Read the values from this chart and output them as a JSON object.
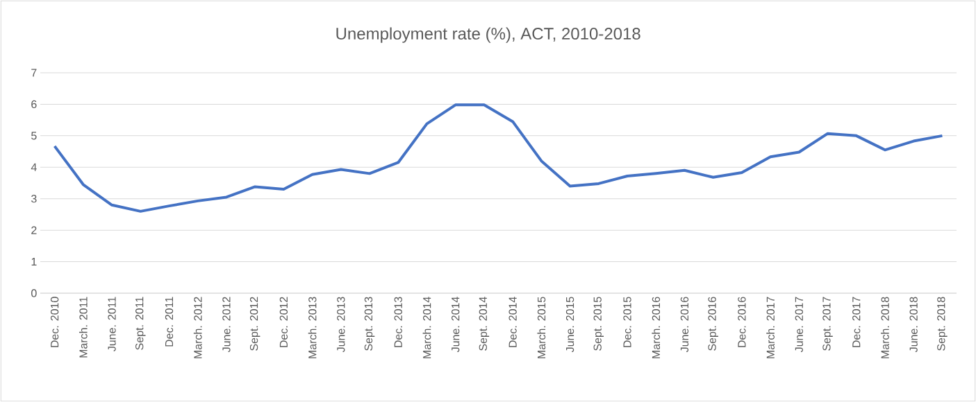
{
  "chart_data": {
    "type": "line",
    "title": "Unemployment rate (%), ACT, 2010-2018",
    "categories": [
      "Dec. 2010",
      "March. 2011",
      "June. 2011",
      "Sept. 2011",
      "Dec. 2011",
      "March. 2012",
      "June. 2012",
      "Sept. 2012",
      "Dec. 2012",
      "March. 2013",
      "June. 2013",
      "Sept. 2013",
      "Dec. 2013",
      "March. 2014",
      "June. 2014",
      "Sept. 2014",
      "Dec. 2014",
      "March. 2015",
      "June. 2015",
      "Sept. 2015",
      "Dec. 2015",
      "March. 2016",
      "June. 2016",
      "Sept. 2016",
      "Dec. 2016",
      "March. 2017",
      "June. 2017",
      "Sept. 2017",
      "Dec. 2017",
      "March. 2018",
      "June. 2018",
      "Sept. 2018"
    ],
    "series": [
      {
        "color": "#4472c4",
        "values": [
          4.67,
          3.45,
          2.8,
          2.6,
          2.77,
          2.93,
          3.05,
          3.38,
          3.3,
          3.77,
          3.93,
          3.8,
          4.15,
          5.38,
          5.98,
          5.98,
          5.45,
          4.2,
          3.4,
          3.48,
          3.72,
          3.8,
          3.9,
          3.68,
          3.83,
          4.33,
          4.48,
          5.07,
          5.0,
          4.55,
          4.83,
          5.0
        ]
      }
    ],
    "ylim": [
      0,
      7
    ],
    "yticks": [
      0,
      1,
      2,
      3,
      4,
      5,
      6,
      7
    ],
    "grid": "y",
    "marker": "none",
    "line_style": "solid"
  }
}
